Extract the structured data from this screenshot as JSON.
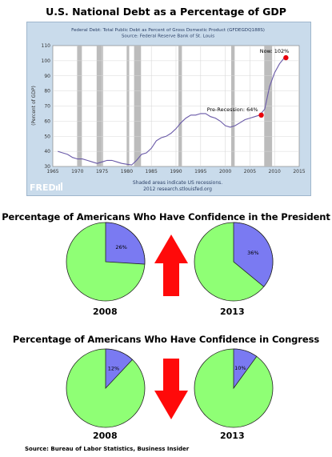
{
  "titles": {
    "main": "U.S. National Debt as a Percentage of GDP",
    "president": "Percentage of Americans Who Have Confidence in the President",
    "congress": "Percentage of Americans Who Have Confidence in Congress"
  },
  "fred": {
    "header_line1": "Federal Debt: Total Public Debt as Percent of Gross Domestic Product (GFDEGDQ188S)",
    "header_line2": "Source: Federal Reserve Bank of St. Louis",
    "footer_line1": "Shaded areas indicate US recessions.",
    "footer_line2": "2012 research.stlouisfed.org",
    "logo": "FRED",
    "annotation_pre": "Pre-Recession: 64%",
    "annotation_now": "Now: 102%"
  },
  "source": "Source: Bureau of Labor Statistics, Business Insider",
  "colors": {
    "line": "#6a5aa8",
    "highlight": "#e8000b",
    "pie_green": "#8fff75",
    "pie_blue": "#7a7af2",
    "arrow": "#ff0a0a",
    "recession": "#bcbcbc"
  },
  "chart_data": [
    {
      "type": "line",
      "title": "U.S. National Debt as a Percentage of GDP",
      "ylabel": "(Percent of GDP)",
      "xlim": [
        1965,
        2015
      ],
      "ylim": [
        30,
        110
      ],
      "xticks": [
        1965,
        1970,
        1975,
        1980,
        1985,
        1990,
        1995,
        2000,
        2005,
        2010,
        2015
      ],
      "yticks": [
        30,
        40,
        50,
        60,
        70,
        80,
        90,
        100,
        110
      ],
      "grid": true,
      "recessions": [
        [
          1969.9,
          1970.9
        ],
        [
          1973.9,
          1975.2
        ],
        [
          1980.0,
          1980.5
        ],
        [
          1981.5,
          1982.9
        ],
        [
          1990.5,
          1991.2
        ],
        [
          2001.2,
          2001.9
        ],
        [
          2007.9,
          2009.5
        ]
      ],
      "series": [
        {
          "x": [
            1966,
            1967,
            1968,
            1969,
            1970,
            1971,
            1972,
            1973,
            1974,
            1975,
            1976,
            1977,
            1978,
            1979,
            1980,
            1981,
            1982,
            1983,
            1984,
            1985,
            1986,
            1987,
            1988,
            1989,
            1990,
            1991,
            1992,
            1993,
            1994,
            1995,
            1996,
            1997,
            1998,
            1999,
            2000,
            2001,
            2002,
            2003,
            2004,
            2005,
            2006,
            2007,
            2008,
            2009,
            2010,
            2011,
            2012
          ],
          "y": [
            40,
            39,
            38,
            36,
            35,
            35,
            34,
            33,
            32,
            33,
            34,
            34,
            33,
            32,
            31.5,
            31,
            34,
            38,
            39,
            42,
            47,
            49,
            50,
            52,
            55,
            59,
            62,
            64,
            64,
            65,
            65,
            63,
            62,
            60,
            57,
            56,
            57,
            59,
            61,
            62,
            63,
            64,
            68,
            83,
            92,
            98,
            102
          ]
        }
      ],
      "annotations": [
        {
          "x": 2007.3,
          "y": 64,
          "label": "Pre-Recession: 64%"
        },
        {
          "x": 2012.3,
          "y": 102,
          "label": "Now: 102%"
        }
      ]
    },
    {
      "type": "pie",
      "title": "Percentage of Americans Who Have Confidence in the President",
      "groups": [
        {
          "year": "2008",
          "values": [
            26,
            74
          ],
          "label": "26%"
        },
        {
          "year": "2013",
          "values": [
            36,
            64
          ],
          "label": "36%"
        }
      ],
      "trend": "up"
    },
    {
      "type": "pie",
      "title": "Percentage of Americans Who Have Confidence in Congress",
      "groups": [
        {
          "year": "2008",
          "values": [
            12,
            88
          ],
          "label": "12%"
        },
        {
          "year": "2013",
          "values": [
            10,
            90
          ],
          "label": "10%"
        }
      ],
      "trend": "down"
    }
  ]
}
